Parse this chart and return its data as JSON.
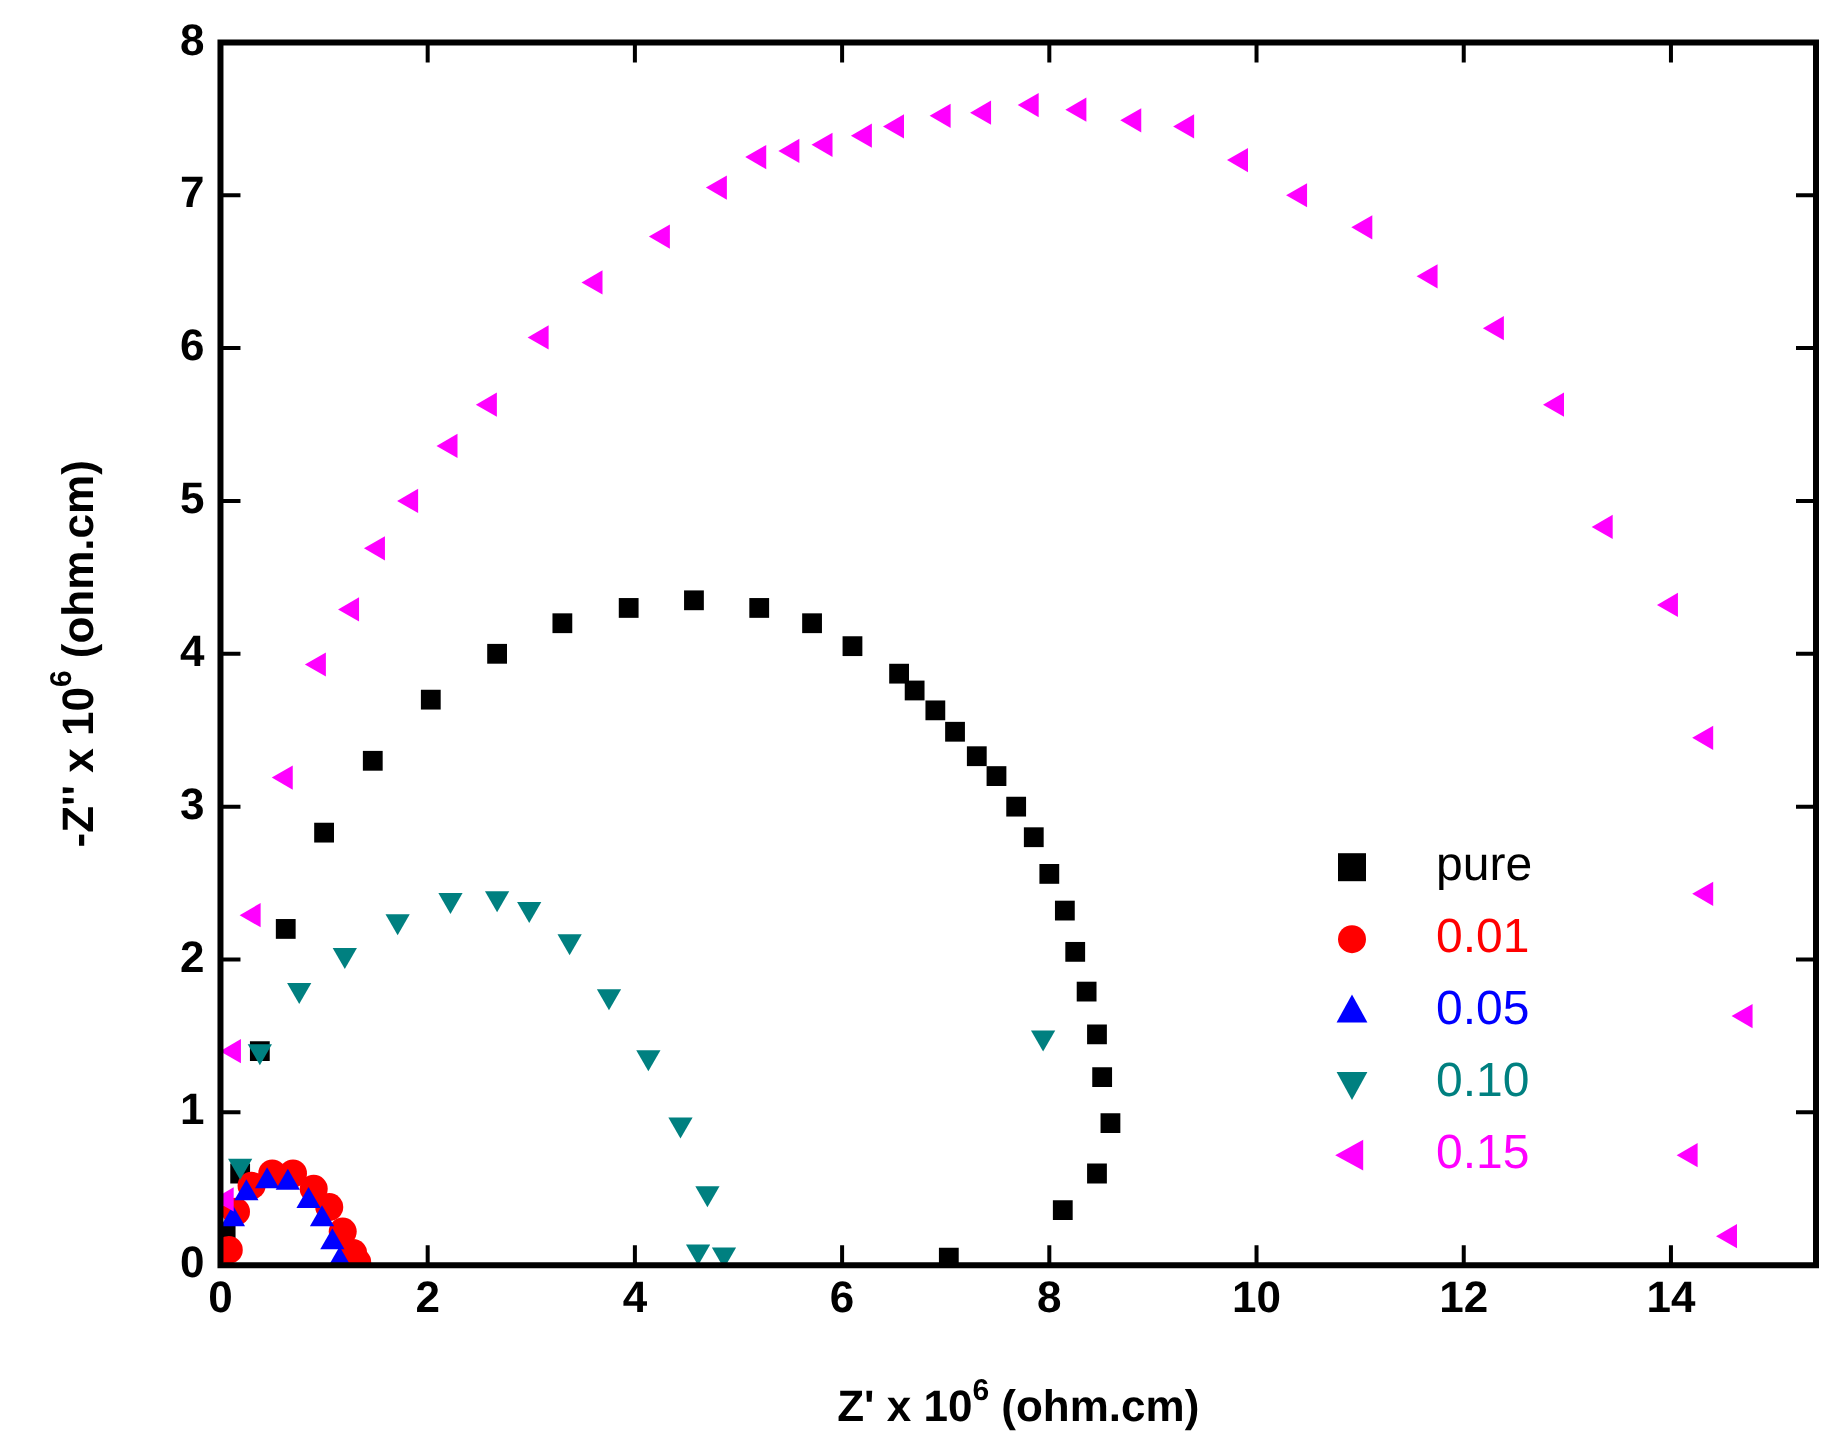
{
  "chart_data": {
    "type": "scatter",
    "xlabel": "Z' x 10$^{6}$ (ohm.cm)",
    "ylabel": "-Z'' x 10$^{6}$ (ohm.cm)",
    "xlim": [
      0,
      15.4
    ],
    "xticks": [
      0,
      2,
      4,
      6,
      8,
      10,
      12,
      14
    ],
    "ylim": [
      0,
      8
    ],
    "yticks": [
      0,
      1,
      2,
      3,
      4,
      5,
      6,
      7,
      8
    ],
    "legend": "bottom right",
    "series": [
      {
        "name": "pure",
        "color": "#000000",
        "marker": "square",
        "x": [
          0.05,
          0.19,
          0.38,
          0.63,
          1.0,
          1.47,
          2.03,
          2.67,
          3.3,
          3.94,
          4.57,
          5.2,
          5.71,
          6.1,
          6.55,
          6.7,
          6.9,
          7.09,
          7.3,
          7.49,
          7.68,
          7.85,
          8.0,
          8.15,
          8.25,
          8.36,
          8.46,
          8.51,
          8.59,
          8.46,
          8.13,
          7.03
        ],
        "values": [
          0.2,
          0.6,
          1.4,
          2.2,
          2.83,
          3.3,
          3.7,
          4.0,
          4.2,
          4.3,
          4.35,
          4.3,
          4.2,
          4.05,
          3.87,
          3.76,
          3.63,
          3.49,
          3.33,
          3.2,
          3.0,
          2.8,
          2.56,
          2.32,
          2.05,
          1.79,
          1.51,
          1.23,
          0.93,
          0.6,
          0.36,
          0.05
        ]
      },
      {
        "name": "0.01",
        "color": "#ff0000",
        "marker": "circle",
        "x": [
          0.08,
          0.15,
          0.3,
          0.5,
          0.7,
          0.9,
          1.05,
          1.18,
          1.28,
          1.32
        ],
        "values": [
          0.1,
          0.35,
          0.52,
          0.6,
          0.6,
          0.5,
          0.38,
          0.22,
          0.08,
          0.02
        ]
      },
      {
        "name": "0.05",
        "color": "#0000ff",
        "marker": "triangle",
        "x": [
          0.12,
          0.25,
          0.45,
          0.65,
          0.85,
          0.98,
          1.08,
          1.15
        ],
        "values": [
          0.3,
          0.47,
          0.55,
          0.54,
          0.42,
          0.3,
          0.15,
          0.03
        ]
      },
      {
        "name": "0.10",
        "color": "#008080",
        "marker": "triangle-down",
        "x": [
          0.19,
          0.38,
          0.76,
          1.2,
          1.71,
          2.22,
          2.67,
          2.98,
          3.37,
          3.75,
          4.13,
          4.44,
          4.7,
          4.61,
          4.86,
          7.94
        ],
        "values": [
          0.65,
          1.4,
          1.8,
          2.03,
          2.25,
          2.39,
          2.4,
          2.33,
          2.12,
          1.76,
          1.36,
          0.92,
          0.47,
          0.09,
          0.07,
          1.49
        ]
      },
      {
        "name": "0.15",
        "color": "#ff00ff",
        "marker": "triangle-left",
        "x": [
          0.06,
          0.13,
          0.32,
          0.63,
          0.95,
          1.27,
          1.52,
          1.84,
          2.22,
          2.6,
          3.1,
          3.62,
          4.27,
          4.82,
          5.2,
          5.52,
          5.84,
          6.22,
          6.53,
          6.98,
          7.37,
          7.83,
          8.29,
          8.82,
          9.33,
          9.85,
          10.42,
          11.05,
          11.68,
          12.32,
          12.9,
          13.37,
          14.0,
          14.34,
          14.34,
          14.72,
          14.19,
          14.57
        ],
        "values": [
          0.43,
          1.4,
          2.29,
          3.19,
          3.93,
          4.29,
          4.69,
          5.0,
          5.36,
          5.63,
          6.07,
          6.43,
          6.73,
          7.05,
          7.25,
          7.29,
          7.33,
          7.39,
          7.45,
          7.52,
          7.54,
          7.59,
          7.56,
          7.49,
          7.45,
          7.23,
          7.0,
          6.79,
          6.47,
          6.13,
          5.63,
          4.83,
          4.32,
          3.45,
          2.43,
          1.63,
          0.72,
          0.19
        ]
      }
    ]
  }
}
